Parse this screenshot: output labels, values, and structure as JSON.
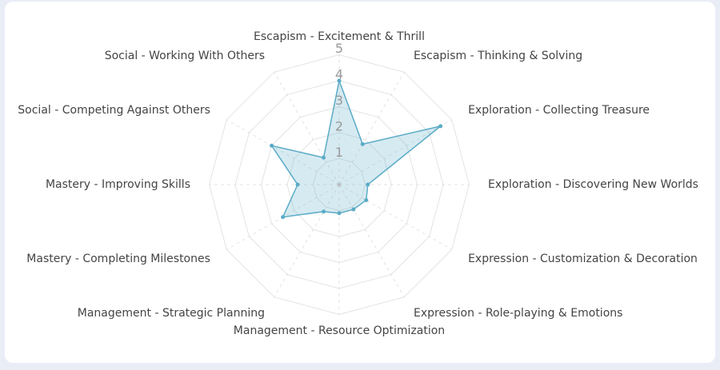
{
  "chart_data": {
    "type": "radar",
    "categories": [
      "Escapism - Excitement & Thrill",
      "Escapism - Thinking & Solving",
      "Exploration - Collecting Treasure",
      "Exploration - Discovering New Worlds",
      "Expression - Customization & Decoration",
      "Expression - Role-playing & Emotions",
      "Management - Resource Optimization",
      "Management - Strategic Planning",
      "Mastery - Completing Milestones",
      "Mastery - Improving Skills",
      "Social - Competing Against Others",
      "Social - Working With Others"
    ],
    "values": [
      4.0,
      1.8,
      4.5,
      1.1,
      1.2,
      1.1,
      1.1,
      1.2,
      2.5,
      1.6,
      3.0,
      1.2
    ],
    "color": "#5aabc6",
    "ylim": [
      0,
      5
    ],
    "yticks": [
      1,
      2,
      3,
      4,
      5
    ],
    "grid": true
  }
}
